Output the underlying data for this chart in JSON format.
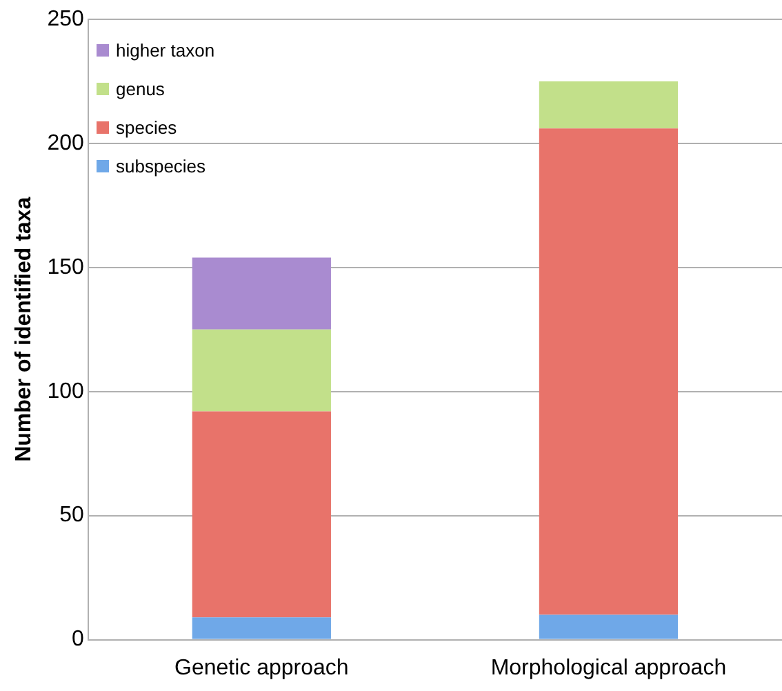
{
  "chart_data": {
    "type": "bar",
    "stacked": true,
    "ylabel": "Number of identified taxa",
    "categories": [
      "Genetic approach",
      "Morphological approach"
    ],
    "series": [
      {
        "name": "subspecies",
        "color": "#6fa8e8",
        "values": [
          9,
          10
        ]
      },
      {
        "name": "species",
        "color": "#e8736a",
        "values": [
          83,
          196
        ]
      },
      {
        "name": "genus",
        "color": "#c2e08a",
        "values": [
          33,
          19
        ]
      },
      {
        "name": "higher taxon",
        "color": "#a98bd0",
        "values": [
          29,
          null
        ]
      }
    ],
    "ylim": [
      0,
      250
    ],
    "yticks": [
      0,
      50,
      100,
      150,
      200,
      250
    ],
    "grid": "y",
    "legend": "top left"
  }
}
